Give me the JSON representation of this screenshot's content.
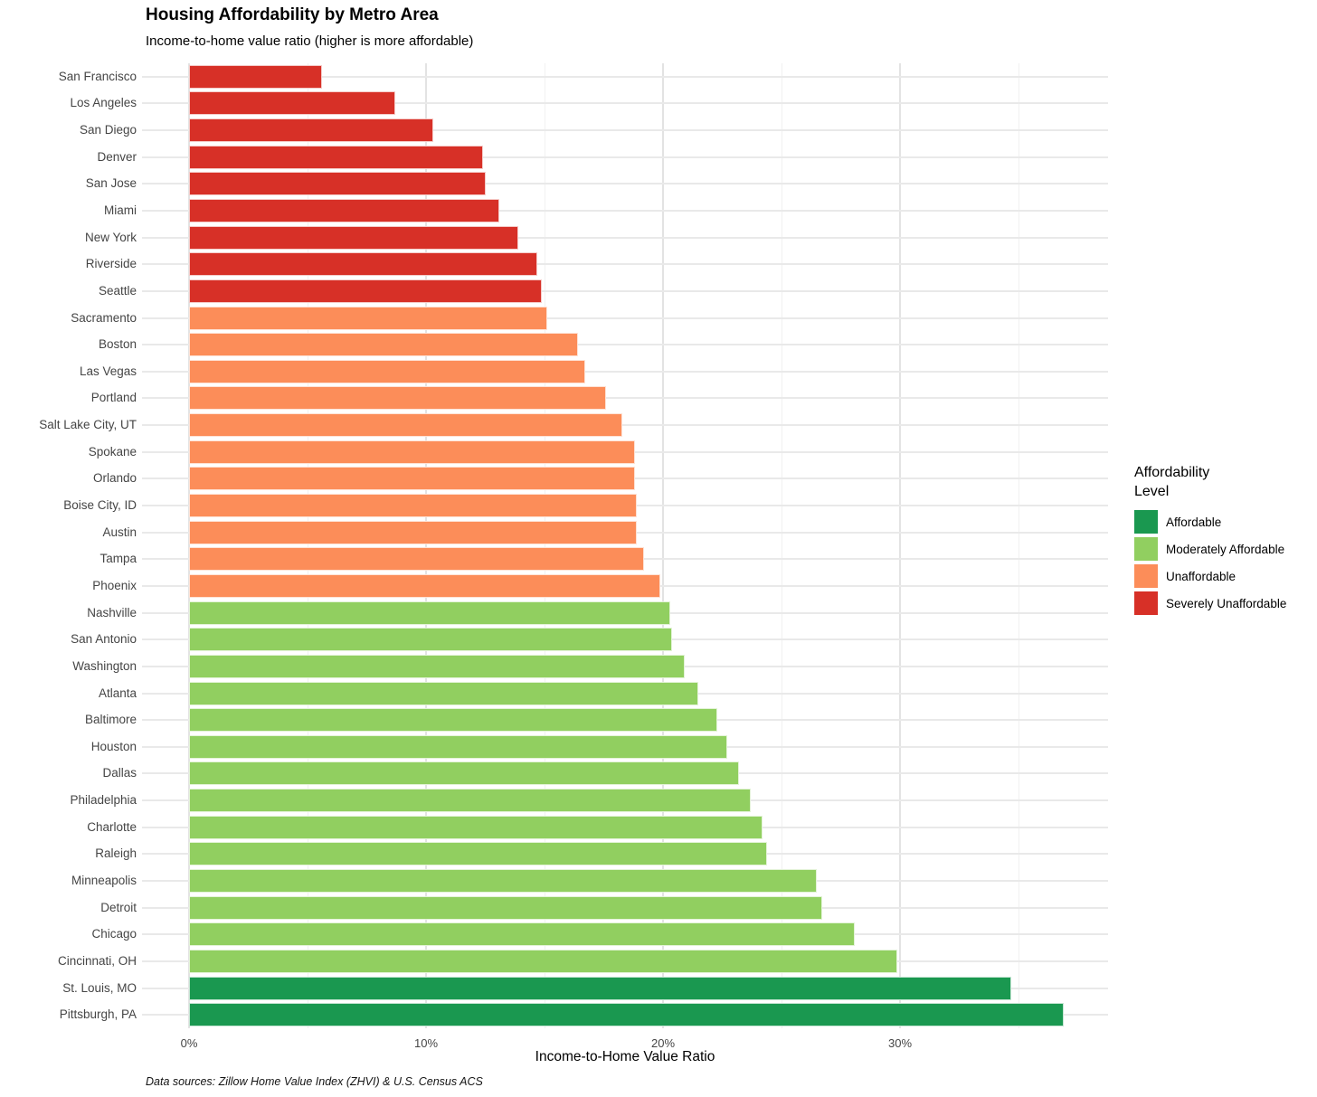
{
  "header": {
    "title": "Housing Affordability by Metro Area",
    "subtitle": "Income-to-home value ratio (higher is more affordable)"
  },
  "chart_data": {
    "type": "bar",
    "orientation": "horizontal",
    "title": "Housing Affordability by Metro Area",
    "subtitle": "Income-to-home value ratio (higher is more affordable)",
    "xlabel": "Income-to-Home Value Ratio",
    "ylabel": "",
    "xlim": [
      0,
      38.8
    ],
    "grid": true,
    "x_ticks": [
      {
        "value": 0,
        "label": "0%"
      },
      {
        "value": 10,
        "label": "10%"
      },
      {
        "value": 20,
        "label": "20%"
      },
      {
        "value": 30,
        "label": "30%"
      }
    ],
    "minor_grid_values": [
      5,
      15,
      25,
      35
    ],
    "categories": [
      "San Francisco",
      "Los Angeles",
      "San Diego",
      "Denver",
      "San Jose",
      "Miami",
      "New York",
      "Riverside",
      "Seattle",
      "Sacramento",
      "Boston",
      "Las Vegas",
      "Portland",
      "Salt Lake City, UT",
      "Spokane",
      "Orlando",
      "Boise City, ID",
      "Austin",
      "Tampa",
      "Phoenix",
      "Nashville",
      "San Antonio",
      "Washington",
      "Atlanta",
      "Baltimore",
      "Houston",
      "Dallas",
      "Philadelphia",
      "Charlotte",
      "Raleigh",
      "Minneapolis",
      "Detroit",
      "Chicago",
      "Cincinnati, OH",
      "St. Louis, MO",
      "Pittsburgh, PA"
    ],
    "values": [
      5.6,
      8.7,
      10.3,
      12.4,
      12.5,
      13.1,
      13.9,
      14.7,
      14.9,
      15.1,
      16.4,
      16.7,
      17.6,
      18.3,
      18.8,
      18.8,
      18.9,
      18.9,
      19.2,
      19.9,
      20.3,
      20.4,
      20.9,
      21.5,
      22.3,
      22.7,
      23.2,
      23.7,
      24.2,
      24.4,
      26.5,
      26.7,
      28.1,
      29.9,
      34.7,
      36.9
    ],
    "levels": [
      "Severely Unaffordable",
      "Severely Unaffordable",
      "Severely Unaffordable",
      "Severely Unaffordable",
      "Severely Unaffordable",
      "Severely Unaffordable",
      "Severely Unaffordable",
      "Severely Unaffordable",
      "Severely Unaffordable",
      "Unaffordable",
      "Unaffordable",
      "Unaffordable",
      "Unaffordable",
      "Unaffordable",
      "Unaffordable",
      "Unaffordable",
      "Unaffordable",
      "Unaffordable",
      "Unaffordable",
      "Unaffordable",
      "Moderately Affordable",
      "Moderately Affordable",
      "Moderately Affordable",
      "Moderately Affordable",
      "Moderately Affordable",
      "Moderately Affordable",
      "Moderately Affordable",
      "Moderately Affordable",
      "Moderately Affordable",
      "Moderately Affordable",
      "Moderately Affordable",
      "Moderately Affordable",
      "Moderately Affordable",
      "Moderately Affordable",
      "Affordable",
      "Affordable"
    ],
    "level_colors": {
      "Affordable": "#1a9850",
      "Moderately Affordable": "#91cf60",
      "Unaffordable": "#fc8d59",
      "Severely Unaffordable": "#d73027"
    },
    "legend_position": "right"
  },
  "legend": {
    "title": "Affordability\nLevel",
    "items": [
      {
        "label": "Affordable",
        "color": "#1a9850"
      },
      {
        "label": "Moderately Affordable",
        "color": "#91cf60"
      },
      {
        "label": "Unaffordable",
        "color": "#fc8d59"
      },
      {
        "label": "Severely Unaffordable",
        "color": "#d73027"
      }
    ]
  },
  "caption": "Data sources: Zillow Home Value Index (ZHVI) & U.S. Census ACS"
}
